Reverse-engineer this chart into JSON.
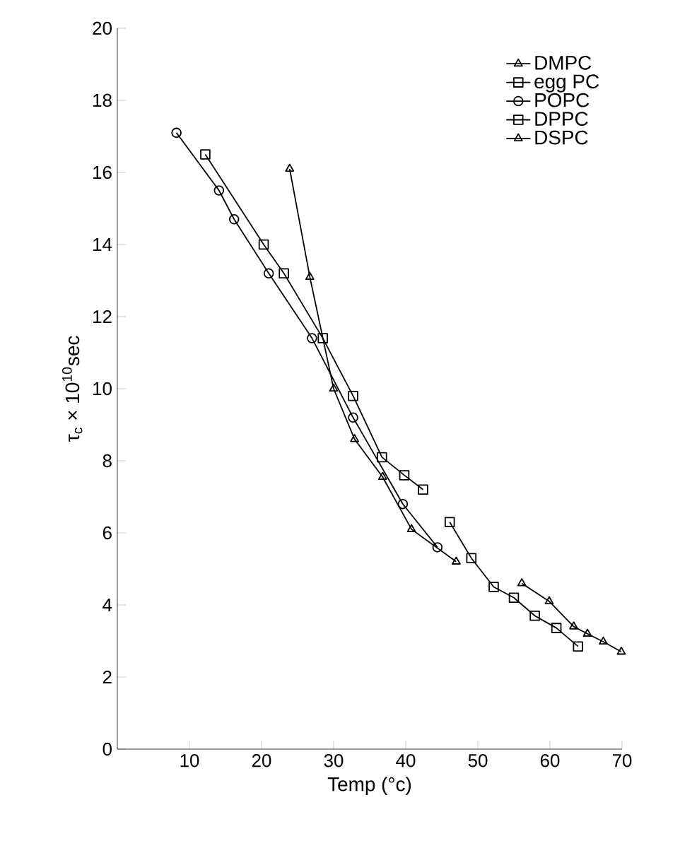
{
  "chart_data": {
    "type": "line",
    "xlabel": "Temp (°c)",
    "ylabel": "τ$_{c}$ × 10$^{10}$sec",
    "xlim": [
      0,
      70
    ],
    "ylim": [
      0,
      20
    ],
    "xticks": [
      10,
      20,
      30,
      40,
      50,
      60,
      70
    ],
    "yticks": [
      0,
      2,
      4,
      6,
      8,
      10,
      12,
      14,
      16,
      18,
      20
    ],
    "legend": "top right",
    "grid": false,
    "line_style": "solid",
    "series": [
      {
        "name": "DMPC",
        "color": "#000000",
        "marker": "triangle",
        "x": [
          23.9,
          26.7,
          30,
          32.9,
          36.8,
          40.8,
          47
        ],
        "values": [
          16.1,
          13.1,
          10.0,
          8.6,
          7.55,
          6.1,
          5.2
        ]
      },
      {
        "name": "egg PC",
        "color": "#000000",
        "marker": "square",
        "x": [
          12.2,
          20.3,
          23.1,
          28.5,
          32.7,
          36.7,
          39.8,
          42.4
        ],
        "values": [
          16.5,
          14.0,
          13.2,
          11.4,
          9.8,
          8.1,
          7.6,
          7.2
        ]
      },
      {
        "name": "POPC",
        "color": "#000000",
        "marker": "circle",
        "x": [
          8.2,
          14.1,
          16.2,
          21,
          27,
          32.7,
          39.6,
          44.4
        ],
        "values": [
          17.1,
          15.5,
          14.7,
          13.2,
          11.4,
          9.2,
          6.8,
          5.6
        ]
      },
      {
        "name": "DPPC",
        "color": "#000000",
        "marker": "square",
        "x": [
          46.1,
          49.1,
          52.2,
          55,
          57.9,
          60.9,
          63.9
        ],
        "values": [
          6.3,
          5.3,
          4.5,
          4.2,
          3.7,
          3.36,
          2.85
        ]
      },
      {
        "name": "DSPC",
        "color": "#000000",
        "marker": "triangle",
        "x": [
          56.1,
          59.9,
          63.3,
          65.2,
          67.4,
          69.9
        ],
        "values": [
          4.6,
          4.1,
          3.4,
          3.2,
          2.98,
          2.7
        ]
      }
    ]
  }
}
